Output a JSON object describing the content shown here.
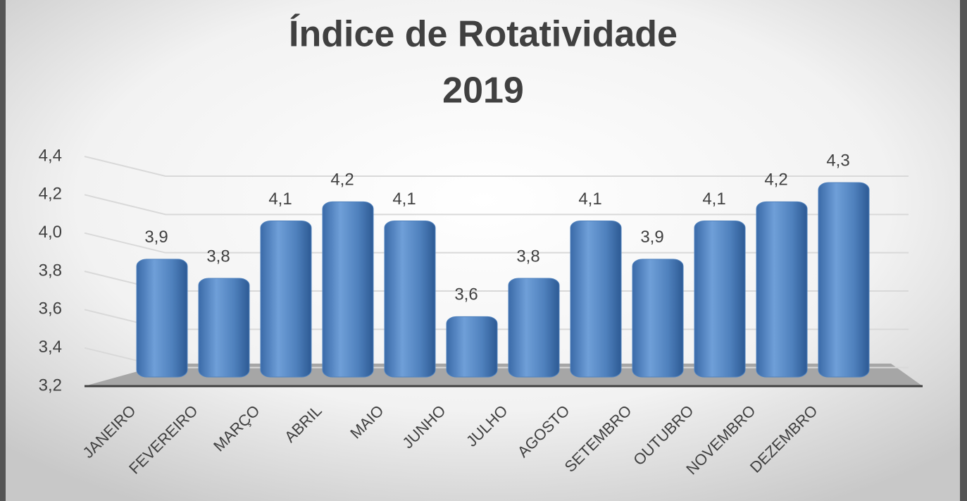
{
  "chart_data": {
    "type": "bar",
    "title": [
      "Índice de Rotatividade",
      "2019"
    ],
    "categories": [
      "JANEIRO",
      "FEVEREIRO",
      "MARÇO",
      "ABRIL",
      "MAIO",
      "JUNHO",
      "JULHO",
      "AGOSTO",
      "SETEMBRO",
      "OUTUBRO",
      "NOVEMBRO",
      "DEZEMBRO"
    ],
    "values": [
      3.9,
      3.8,
      4.1,
      4.2,
      4.1,
      3.6,
      3.8,
      4.1,
      3.9,
      4.1,
      4.2,
      4.3
    ],
    "value_labels": [
      "3,9",
      "3,8",
      "4,1",
      "4,2",
      "4,1",
      "3,6",
      "3,8",
      "4,1",
      "3,9",
      "4,1",
      "4,2",
      "4,3"
    ],
    "color": "#4f81bd",
    "ylim": [
      3.2,
      4.4
    ],
    "yticks": [
      {
        "value": 3.2,
        "label": "3,2"
      },
      {
        "value": 3.4,
        "label": "3,4"
      },
      {
        "value": 3.6,
        "label": "3,6"
      },
      {
        "value": 3.8,
        "label": "3,8"
      },
      {
        "value": 4.0,
        "label": "4,0"
      },
      {
        "value": 4.2,
        "label": "4,2"
      },
      {
        "value": 4.4,
        "label": "4,4"
      }
    ],
    "grid": true
  }
}
